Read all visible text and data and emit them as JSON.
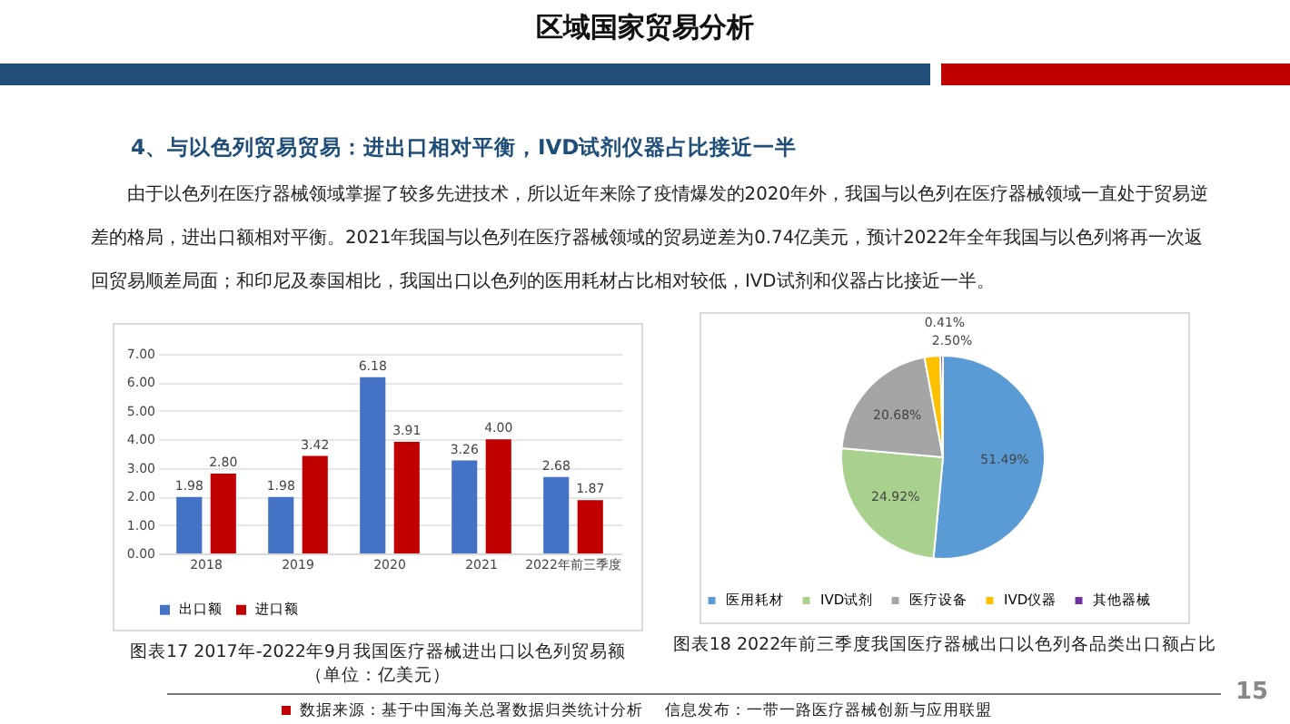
{
  "chart_data": [
    {
      "type": "other",
      "title": "区域国家贸易分析",
      "subtitle": "4、与以色列贸易贸易：进出口相对平衡，IVD试剂仪器占比接近一半",
      "annotations": [
        "由于以色列在医疗器械领域掌握了较多先进技术，所以近年来除了疫情爆发的2020年外，我国与以色列在医疗器械领域一直处于贸易逆差的格局，进出口额相对平衡。2021年我国与以色列在医疗器械领域的贸易逆差为0.74亿美元，预计2022年全年我国与以色列将再一次返回贸易顺差局面；和印尼及泰国相比，我国出口以色列的医用耗材占比相对较低，IVD试剂和仪器占比接近一半。",
        "数据来源：基于中国海关总署数据归类统计分析",
        "信息发布：一带一路医疗器械创新与应用联盟",
        "15"
      ]
    },
    {
      "type": "bar",
      "title": "图表17  2017年-2022年9月我国医疗器械进出口以色列贸易额",
      "subtitle": "（单位：亿美元）",
      "categories": [
        "2018",
        "2019",
        "2020",
        "2021",
        "2022年前三季度"
      ],
      "series": [
        {
          "name": "出口额",
          "color": "#4472c4",
          "values": [
            1.98,
            1.98,
            6.18,
            3.26,
            2.68
          ],
          "value_labels": [
            "1.98",
            "1.98",
            "6.18",
            "3.26",
            "2.68"
          ]
        },
        {
          "name": "进口额",
          "color": "#c00000",
          "values": [
            2.8,
            3.42,
            3.91,
            4.0,
            1.87
          ],
          "value_labels": [
            "2.80",
            "3.42",
            "3.91",
            "4.00",
            "1.87"
          ]
        }
      ],
      "ylim": [
        0,
        7
      ],
      "yticks": [
        {
          "value": 0,
          "label": "0.00"
        },
        {
          "value": 1,
          "label": "1.00"
        },
        {
          "value": 2,
          "label": "2.00"
        },
        {
          "value": 3,
          "label": "3.00"
        },
        {
          "value": 4,
          "label": "4.00"
        },
        {
          "value": 5,
          "label": "5.00"
        },
        {
          "value": 6,
          "label": "6.00"
        },
        {
          "value": 7,
          "label": "7.00"
        }
      ],
      "grid": "y",
      "legend": "bottom"
    },
    {
      "type": "pie",
      "title": "图表18  2022年前三季度我国医疗器械出口以色列各品类出口额占比",
      "categories": [
        "医用耗材",
        "IVD试剂",
        "医疗设备",
        "IVD仪器",
        "其他器械"
      ],
      "values": [
        51.49,
        24.92,
        20.68,
        2.5,
        0.41
      ],
      "value_labels": [
        "51.49%",
        "24.92%",
        "20.68%",
        "2.50%",
        "0.41%"
      ],
      "colors": [
        "#5b9bd5",
        "#a9d18e",
        "#a5a5a5",
        "#ffc000",
        "#7030a0"
      ],
      "legend": "bottom"
    }
  ]
}
